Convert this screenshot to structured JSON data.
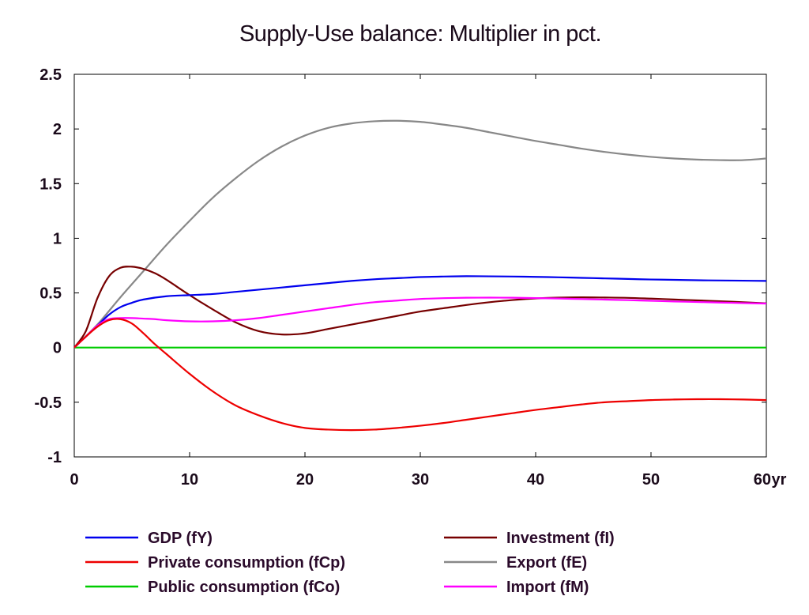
{
  "chart_data": {
    "type": "line",
    "title": "Supply-Use balance: Multiplier in pct.",
    "xlabel": "",
    "ylabel": "",
    "x_unit_label": "yr",
    "xlim": [
      0,
      60
    ],
    "ylim": [
      -1,
      2.5
    ],
    "x_ticks": [
      "0",
      "10",
      "20",
      "30",
      "40",
      "50",
      "60"
    ],
    "y_ticks": [
      "-1",
      "-0.5",
      "0",
      "0.5",
      "1",
      "1.5",
      "2",
      "2.5"
    ],
    "grid": false,
    "legend_position": "bottom",
    "series": [
      {
        "name": "GDP (fY)",
        "color": "#0000ee",
        "x": [
          0,
          1,
          2,
          3,
          4,
          5,
          6,
          8,
          10,
          12,
          14,
          16,
          18,
          20,
          22,
          24,
          26,
          28,
          30,
          32,
          34,
          36,
          38,
          40,
          42,
          44,
          46,
          48,
          50,
          52,
          54,
          56,
          58,
          60
        ],
        "y": [
          0,
          0.1,
          0.2,
          0.3,
          0.37,
          0.41,
          0.44,
          0.47,
          0.48,
          0.49,
          0.51,
          0.53,
          0.55,
          0.57,
          0.59,
          0.61,
          0.625,
          0.635,
          0.645,
          0.65,
          0.653,
          0.652,
          0.65,
          0.647,
          0.643,
          0.638,
          0.633,
          0.628,
          0.623,
          0.62,
          0.616,
          0.614,
          0.612,
          0.61
        ]
      },
      {
        "name": "Private consumption (fCp)",
        "color": "#ee0000",
        "x": [
          0,
          1,
          2,
          3,
          4,
          5,
          6,
          7,
          8,
          10,
          12,
          14,
          16,
          18,
          20,
          22,
          24,
          26,
          28,
          30,
          32,
          34,
          36,
          38,
          40,
          42,
          44,
          46,
          48,
          50,
          52,
          54,
          56,
          58,
          60
        ],
        "y": [
          0,
          0.1,
          0.19,
          0.25,
          0.26,
          0.22,
          0.13,
          0.03,
          -0.06,
          -0.24,
          -0.4,
          -0.53,
          -0.62,
          -0.69,
          -0.735,
          -0.75,
          -0.755,
          -0.75,
          -0.735,
          -0.715,
          -0.69,
          -0.66,
          -0.63,
          -0.6,
          -0.57,
          -0.545,
          -0.52,
          -0.5,
          -0.49,
          -0.48,
          -0.475,
          -0.472,
          -0.472,
          -0.475,
          -0.48
        ]
      },
      {
        "name": "Public consumption (fCo)",
        "color": "#00cc00",
        "x": [
          0,
          60
        ],
        "y": [
          0,
          0
        ]
      },
      {
        "name": "Investment (fI)",
        "color": "#770000",
        "x": [
          0,
          1,
          2,
          3,
          4,
          5,
          6,
          7,
          8,
          10,
          12,
          14,
          16,
          18,
          20,
          22,
          24,
          26,
          28,
          30,
          32,
          34,
          36,
          38,
          40,
          42,
          44,
          46,
          48,
          50,
          52,
          54,
          56,
          58,
          60
        ],
        "y": [
          0,
          0.15,
          0.45,
          0.65,
          0.73,
          0.74,
          0.72,
          0.68,
          0.62,
          0.48,
          0.35,
          0.23,
          0.15,
          0.12,
          0.13,
          0.17,
          0.21,
          0.25,
          0.29,
          0.33,
          0.36,
          0.39,
          0.415,
          0.435,
          0.45,
          0.457,
          0.46,
          0.458,
          0.455,
          0.448,
          0.44,
          0.432,
          0.424,
          0.415,
          0.405
        ]
      },
      {
        "name": "Export (fE)",
        "color": "#888888",
        "x": [
          0,
          2,
          4,
          6,
          8,
          10,
          12,
          14,
          16,
          18,
          20,
          22,
          24,
          26,
          28,
          30,
          32,
          34,
          36,
          38,
          40,
          42,
          44,
          46,
          48,
          50,
          52,
          54,
          56,
          58,
          60
        ],
        "y": [
          0,
          0.21,
          0.46,
          0.7,
          0.94,
          1.16,
          1.37,
          1.55,
          1.71,
          1.84,
          1.94,
          2.01,
          2.05,
          2.07,
          2.075,
          2.065,
          2.04,
          2.01,
          1.97,
          1.93,
          1.89,
          1.855,
          1.82,
          1.79,
          1.765,
          1.745,
          1.73,
          1.72,
          1.715,
          1.715,
          1.73
        ]
      },
      {
        "name": "Import (fM)",
        "color": "#ff00ff",
        "x": [
          0,
          1,
          2,
          3,
          4,
          5,
          6,
          7,
          8,
          10,
          12,
          14,
          16,
          18,
          20,
          22,
          24,
          26,
          28,
          30,
          32,
          34,
          36,
          38,
          40,
          42,
          44,
          46,
          48,
          50,
          52,
          54,
          56,
          58,
          60
        ],
        "y": [
          0,
          0.1,
          0.2,
          0.26,
          0.27,
          0.27,
          0.265,
          0.26,
          0.25,
          0.24,
          0.24,
          0.25,
          0.27,
          0.3,
          0.33,
          0.36,
          0.39,
          0.415,
          0.43,
          0.445,
          0.452,
          0.456,
          0.457,
          0.456,
          0.453,
          0.449,
          0.444,
          0.439,
          0.434,
          0.428,
          0.422,
          0.417,
          0.412,
          0.407,
          0.403
        ]
      }
    ]
  }
}
